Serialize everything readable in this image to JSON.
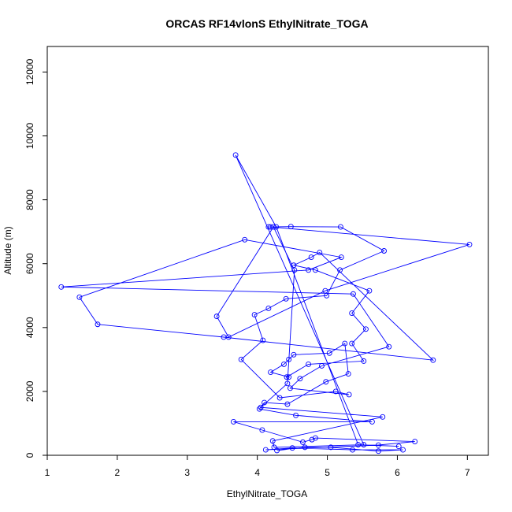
{
  "chart_data": {
    "type": "line",
    "title": "ORCAS RF14vlonS EthylNitrate_TOGA",
    "xlabel": "EthylNitrate_TOGA",
    "ylabel": "Altitude (m)",
    "xlim": [
      1,
      7.3
    ],
    "ylim": [
      0,
      12800
    ],
    "xticks": [
      "1",
      "2",
      "3",
      "4",
      "5",
      "6",
      "7"
    ],
    "yticks": [
      "0",
      "2000",
      "4000",
      "6000",
      "8000",
      "10000",
      "12000"
    ],
    "grid": false,
    "line_color": "#0000ff",
    "marker": "open-circle",
    "series": [
      {
        "x": [
          4.28,
          4.68,
          5.05,
          5.73,
          6.08,
          5.36,
          4.5,
          4.12,
          5.73,
          6.25,
          4.83,
          4.78,
          4.65,
          4.07,
          3.66,
          5.64,
          4.55,
          4.03,
          4.1,
          4.43,
          4.98,
          5.3,
          5.25,
          5.03,
          4.52,
          4.45,
          4.38,
          4.19,
          4.45,
          4.42,
          4.73,
          5.52,
          5.35,
          5.55,
          5.35,
          5.6,
          4.83,
          4.52,
          4.77,
          4.89,
          6.51,
          3.52,
          1.72,
          1.46,
          3.82,
          5.2,
          4.73,
          1.2,
          5.37,
          5.88,
          4.92,
          4.61,
          4.47,
          5.31,
          5.12,
          4.32,
          3.77,
          4.08,
          3.96,
          4.16,
          4.41,
          4.99,
          5.18,
          5.81,
          5.19,
          4.48,
          4.16,
          4.19,
          7.03,
          4.97,
          3.59,
          3.42,
          4.23,
          4.53,
          4.43,
          4.05,
          5.79,
          4.22,
          4.24,
          5.52,
          3.69,
          4.27,
          5.44,
          6.02
        ],
        "y": [
          150,
          250,
          250,
          130,
          170,
          170,
          230,
          170,
          320,
          430,
          540,
          490,
          410,
          790,
          1050,
          1050,
          1250,
          1450,
          1650,
          1600,
          2300,
          2550,
          3500,
          3200,
          3150,
          3000,
          2850,
          2600,
          2450,
          2450,
          2850,
          2950,
          3500,
          3950,
          4450,
          5150,
          5800,
          5950,
          6200,
          6350,
          2980,
          3700,
          4100,
          4950,
          6750,
          6200,
          5800,
          5270,
          5050,
          3400,
          2800,
          2400,
          2100,
          1900,
          2000,
          1800,
          3000,
          3600,
          4400,
          4600,
          4900,
          5000,
          5800,
          6400,
          7150,
          7160,
          7150,
          7150,
          6600,
          5150,
          3700,
          4350,
          7150,
          5800,
          2250,
          1500,
          1200,
          450,
          250,
          330,
          9400,
          7150,
          330,
          280
        ]
      }
    ]
  }
}
